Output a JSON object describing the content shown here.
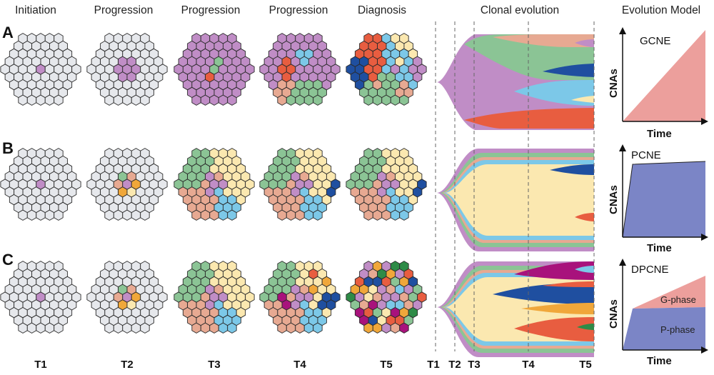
{
  "headers": {
    "initiation": "Initiation",
    "progression": "Progression",
    "diagnosis": "Diagnosis",
    "clonal_evolution": "Clonal evolution",
    "evolution_model": "Evolution Model"
  },
  "rows": [
    {
      "label": "A",
      "model": "GCNE"
    },
    {
      "label": "B",
      "model": "PCNE"
    },
    {
      "label": "C",
      "model": "DPCNE"
    }
  ],
  "timepoints": [
    "T1",
    "T2",
    "T3",
    "T4",
    "T5"
  ],
  "axes": {
    "y": "CNAs",
    "x": "Time"
  },
  "phases": {
    "g": "G-phase",
    "p": "P-phase"
  },
  "colors": {
    "normal": "#e6e8ec",
    "ancestral": "#c08dc6",
    "green": "#8bc495",
    "salmon": "#e7a992",
    "yellow": "#fbe8b0",
    "sky": "#7cc8e8",
    "navy": "#1f4fa0",
    "red": "#e85d40",
    "orange": "#f0a73a",
    "magenta": "#a8127c",
    "darkgreen": "#2e8b47",
    "gcne_fill": "#ec9f9c",
    "pcne_fill": "#7b85c6"
  }
}
